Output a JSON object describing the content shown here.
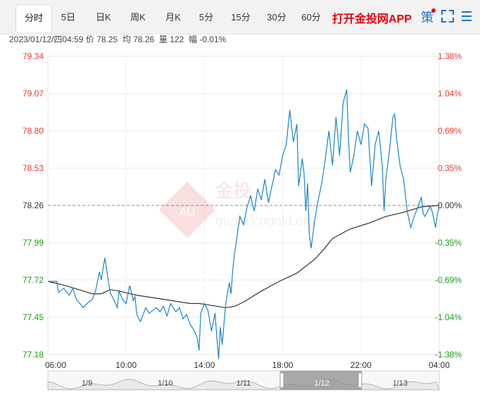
{
  "tabs": [
    {
      "label": "分时",
      "active": true
    },
    {
      "label": "5日",
      "active": false
    },
    {
      "label": "日K",
      "active": false
    },
    {
      "label": "周K",
      "active": false
    },
    {
      "label": "月K",
      "active": false
    },
    {
      "label": "5分",
      "active": false
    },
    {
      "label": "15分",
      "active": false
    },
    {
      "label": "30分",
      "active": false
    },
    {
      "label": "60分",
      "active": false
    }
  ],
  "header": {
    "app_link": "打开金投网APP",
    "policy_label": "策",
    "icons": [
      "notification-dot",
      "fullscreen-icon",
      "menu-icon"
    ]
  },
  "info": {
    "datetime": "2023/01/12/四04:59",
    "price_label": "价",
    "price": "78.25",
    "avg_label": "均",
    "avg": "78.26",
    "volume_label": "量",
    "volume": "122",
    "change_label": "幅",
    "change": "-0.01%"
  },
  "watermark": {
    "brand": "金投",
    "abbr": "AU",
    "url": "quote.cngold.org"
  },
  "colors": {
    "up": "#e53935",
    "down": "#1a9b1a",
    "price_line": "#1a84c7",
    "avg_line": "#333333",
    "accent": "#e60012",
    "link_blue": "#1a73c8"
  },
  "chart_data": {
    "type": "line",
    "title": "",
    "base_price": 78.26,
    "ylim": [
      77.18,
      79.34
    ],
    "y_ticks_left": [
      "79.34",
      "79.07",
      "78.80",
      "78.53",
      "78.26",
      "77.99",
      "77.72",
      "77.45",
      "77.18"
    ],
    "y_ticks_right": [
      "1.38%",
      "1.04%",
      "0.69%",
      "0.35%",
      "0.00%",
      "-0.35%",
      "-0.69%",
      "-1.04%",
      "-1.38%"
    ],
    "x_ticks": [
      "06:00",
      "10:00",
      "14:00",
      "18:00",
      "22:00",
      "04:00"
    ],
    "x_hours": [
      0,
      22
    ],
    "series": [
      {
        "name": "",
        "points": [
          [
            0,
            77.71
          ],
          [
            0.5,
            77.71
          ],
          [
            0.6,
            77.63
          ],
          [
            0.9,
            77.66
          ],
          [
            1.2,
            77.61
          ],
          [
            1.4,
            77.66
          ],
          [
            1.6,
            77.58
          ],
          [
            1.8,
            77.55
          ],
          [
            2.0,
            77.52
          ],
          [
            2.2,
            77.55
          ],
          [
            2.5,
            77.58
          ],
          [
            2.7,
            77.65
          ],
          [
            2.9,
            77.78
          ],
          [
            3.0,
            77.72
          ],
          [
            3.2,
            77.88
          ],
          [
            3.3,
            77.8
          ],
          [
            3.5,
            77.63
          ],
          [
            3.7,
            77.58
          ],
          [
            3.9,
            77.52
          ],
          [
            4.0,
            77.64
          ],
          [
            4.2,
            77.58
          ],
          [
            4.4,
            77.55
          ],
          [
            4.6,
            77.68
          ],
          [
            4.8,
            77.57
          ],
          [
            4.9,
            77.6
          ],
          [
            5.0,
            77.47
          ],
          [
            5.2,
            77.42
          ],
          [
            5.3,
            77.45
          ],
          [
            5.5,
            77.52
          ],
          [
            5.7,
            77.48
          ],
          [
            5.9,
            77.5
          ],
          [
            6.1,
            77.52
          ],
          [
            6.3,
            77.49
          ],
          [
            6.5,
            77.53
          ],
          [
            6.7,
            77.46
          ],
          [
            6.9,
            77.55
          ],
          [
            7.2,
            77.49
          ],
          [
            7.4,
            77.52
          ],
          [
            7.6,
            77.44
          ],
          [
            7.8,
            77.47
          ],
          [
            8.0,
            77.4
          ],
          [
            8.2,
            77.36
          ],
          [
            8.4,
            77.3
          ],
          [
            8.5,
            77.21
          ],
          [
            8.6,
            77.48
          ],
          [
            8.8,
            77.55
          ],
          [
            9.0,
            77.5
          ],
          [
            9.2,
            77.35
          ],
          [
            9.4,
            77.48
          ],
          [
            9.5,
            77.3
          ],
          [
            9.6,
            77.15
          ],
          [
            9.7,
            77.38
          ],
          [
            9.8,
            77.25
          ],
          [
            10.0,
            77.55
          ],
          [
            10.2,
            77.7
          ],
          [
            10.3,
            77.62
          ],
          [
            10.4,
            77.8
          ],
          [
            10.5,
            77.92
          ],
          [
            10.6,
            78.0
          ],
          [
            10.7,
            78.1
          ],
          [
            10.8,
            78.18
          ],
          [
            11.0,
            78.12
          ],
          [
            11.2,
            78.25
          ],
          [
            11.4,
            78.33
          ],
          [
            11.6,
            78.22
          ],
          [
            11.8,
            78.38
          ],
          [
            12.0,
            78.3
          ],
          [
            12.2,
            78.45
          ],
          [
            12.4,
            78.28
          ],
          [
            12.6,
            78.4
          ],
          [
            12.8,
            78.52
          ],
          [
            13.0,
            78.48
          ],
          [
            13.2,
            78.62
          ],
          [
            13.4,
            78.7
          ],
          [
            13.6,
            78.95
          ],
          [
            13.8,
            78.72
          ],
          [
            14.0,
            78.85
          ],
          [
            14.1,
            78.4
          ],
          [
            14.3,
            78.6
          ],
          [
            14.4,
            78.5
          ],
          [
            14.5,
            78.22
          ],
          [
            14.6,
            78.42
          ],
          [
            14.7,
            78.05
          ],
          [
            14.8,
            77.95
          ],
          [
            15.0,
            78.15
          ],
          [
            15.2,
            78.3
          ],
          [
            15.4,
            78.42
          ],
          [
            15.6,
            78.6
          ],
          [
            15.8,
            78.8
          ],
          [
            16.0,
            78.55
          ],
          [
            16.2,
            78.9
          ],
          [
            16.4,
            78.62
          ],
          [
            16.6,
            79.0
          ],
          [
            16.8,
            79.1
          ],
          [
            16.9,
            78.75
          ],
          [
            17.0,
            78.5
          ],
          [
            17.2,
            78.62
          ],
          [
            17.4,
            78.8
          ],
          [
            17.6,
            78.7
          ],
          [
            17.8,
            78.85
          ],
          [
            18.0,
            78.82
          ],
          [
            18.2,
            78.4
          ],
          [
            18.4,
            78.7
          ],
          [
            18.6,
            78.8
          ],
          [
            18.8,
            78.55
          ],
          [
            18.9,
            78.22
          ],
          [
            19.0,
            78.45
          ],
          [
            19.2,
            78.65
          ],
          [
            19.4,
            78.9
          ],
          [
            19.5,
            78.92
          ],
          [
            19.6,
            78.75
          ],
          [
            19.8,
            78.55
          ],
          [
            20.0,
            78.45
          ],
          [
            20.2,
            78.22
          ],
          [
            20.4,
            78.1
          ],
          [
            20.6,
            78.18
          ],
          [
            20.8,
            78.25
          ],
          [
            21.0,
            78.32
          ],
          [
            21.1,
            78.2
          ],
          [
            21.2,
            78.18
          ],
          [
            21.4,
            78.23
          ],
          [
            21.5,
            78.25
          ],
          [
            21.6,
            78.22
          ],
          [
            21.7,
            78.16
          ],
          [
            21.8,
            78.1
          ],
          [
            21.9,
            78.2
          ],
          [
            22.0,
            78.25
          ]
        ]
      },
      {
        "name": "",
        "points": [
          [
            0,
            77.71
          ],
          [
            1,
            77.68
          ],
          [
            2,
            77.64
          ],
          [
            2.5,
            77.62
          ],
          [
            3,
            77.62
          ],
          [
            3.5,
            77.65
          ],
          [
            4,
            77.64
          ],
          [
            5,
            77.61
          ],
          [
            6,
            77.59
          ],
          [
            7,
            77.57
          ],
          [
            8,
            77.55
          ],
          [
            8.5,
            77.55
          ],
          [
            9,
            77.54
          ],
          [
            9.5,
            77.53
          ],
          [
            10,
            77.52
          ],
          [
            10.5,
            77.53
          ],
          [
            11,
            77.56
          ],
          [
            12,
            77.64
          ],
          [
            13,
            77.71
          ],
          [
            14,
            77.77
          ],
          [
            15,
            77.87
          ],
          [
            15.5,
            77.94
          ],
          [
            16,
            78.02
          ],
          [
            17,
            78.09
          ],
          [
            18,
            78.13
          ],
          [
            19,
            78.18
          ],
          [
            20,
            78.21
          ],
          [
            21,
            78.25
          ],
          [
            22,
            78.26
          ]
        ]
      }
    ]
  },
  "navigator": {
    "dates": [
      "1/9",
      "1/10",
      "1/11",
      "1/12",
      "1/13"
    ],
    "selected": "1/12"
  }
}
